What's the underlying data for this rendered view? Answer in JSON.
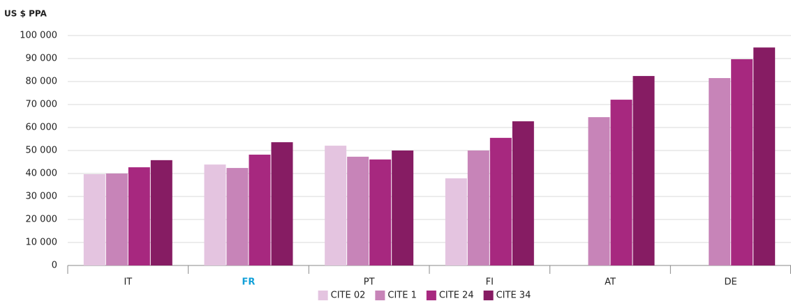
{
  "chart_data": {
    "type": "bar",
    "y_axis_label": "US $ PPA",
    "categories": [
      "IT",
      "FR",
      "PT",
      "FI",
      "AT",
      "DE"
    ],
    "series": [
      {
        "name": "CITE 02",
        "color": "#e4c4e0",
        "values": [
          39700,
          43900,
          52100,
          37900,
          null,
          null
        ]
      },
      {
        "name": "CITE 1",
        "color": "#c784b8",
        "values": [
          40000,
          42400,
          47300,
          50000,
          64500,
          81500
        ]
      },
      {
        "name": "CITE 24",
        "color": "#a7287f",
        "values": [
          42700,
          48200,
          46100,
          55500,
          72100,
          89700
        ]
      },
      {
        "name": "CITE 34",
        "color": "#861c63",
        "values": [
          45800,
          53600,
          50000,
          62700,
          82400,
          94800
        ]
      }
    ],
    "ylim": [
      0,
      100000
    ],
    "yticks": [
      0,
      {
        "value": 10000,
        "label": "10 000"
      },
      {
        "value": 20000,
        "label": "20 000"
      },
      {
        "value": 30000,
        "label": "30 000"
      },
      {
        "value": 40000,
        "label": "40 000"
      },
      {
        "value": 50000,
        "label": "50 000"
      },
      {
        "value": 60000,
        "label": "60 000"
      },
      {
        "value": 70000,
        "label": "70 000"
      },
      {
        "value": 80000,
        "label": "80 000"
      },
      {
        "value": 90000,
        "label": "90 000"
      },
      {
        "value": 100000,
        "label": "100 000"
      }
    ],
    "grid": true,
    "legend": "bottom",
    "highlight": {
      "category": 1,
      "color": "#12a0d8"
    }
  }
}
